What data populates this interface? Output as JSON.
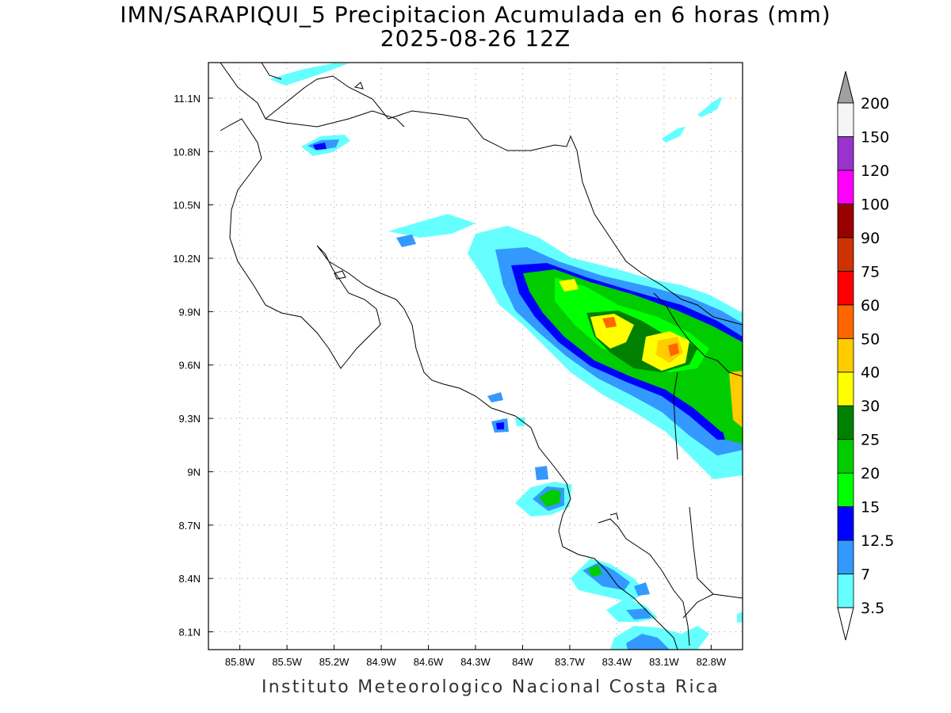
{
  "title": "IMN/SARAPIQUI_5 Precipitacion Acumulada en 6 horas (mm)",
  "subtitle": "2025-08-26 12Z",
  "footer": "Instituto Meteorologico Nacional Costa Rica",
  "axes": {
    "lon_ticks": [
      "85.8W",
      "85.5W",
      "85.2W",
      "84.9W",
      "84.6W",
      "84.3W",
      "84W",
      "83.7W",
      "83.4W",
      "83.1W",
      "82.8W"
    ],
    "lat_ticks": [
      "11.1N",
      "10.8N",
      "10.5N",
      "10.2N",
      "9.9N",
      "9.6N",
      "9.3N",
      "9N",
      "8.7N",
      "8.4N",
      "8.1N"
    ],
    "lon_range": [
      -86.0,
      -82.6
    ],
    "lat_range": [
      8.0,
      11.3
    ],
    "grid": "dotted"
  },
  "colorbar": {
    "labels": [
      "3.5",
      "7",
      "12.5",
      "15",
      "20",
      "25",
      "30",
      "40",
      "50",
      "60",
      "75",
      "90",
      "100",
      "120",
      "150",
      "200"
    ],
    "colors": [
      "#66ffff",
      "#3399ff",
      "#0000ff",
      "#00ff00",
      "#00cc00",
      "#008000",
      "#ffff00",
      "#ffcc00",
      "#ff6600",
      "#ff0000",
      "#cc3300",
      "#990000",
      "#ff00ff",
      "#9933cc",
      "#f5f5f5",
      "#a0a0a0"
    ]
  }
}
